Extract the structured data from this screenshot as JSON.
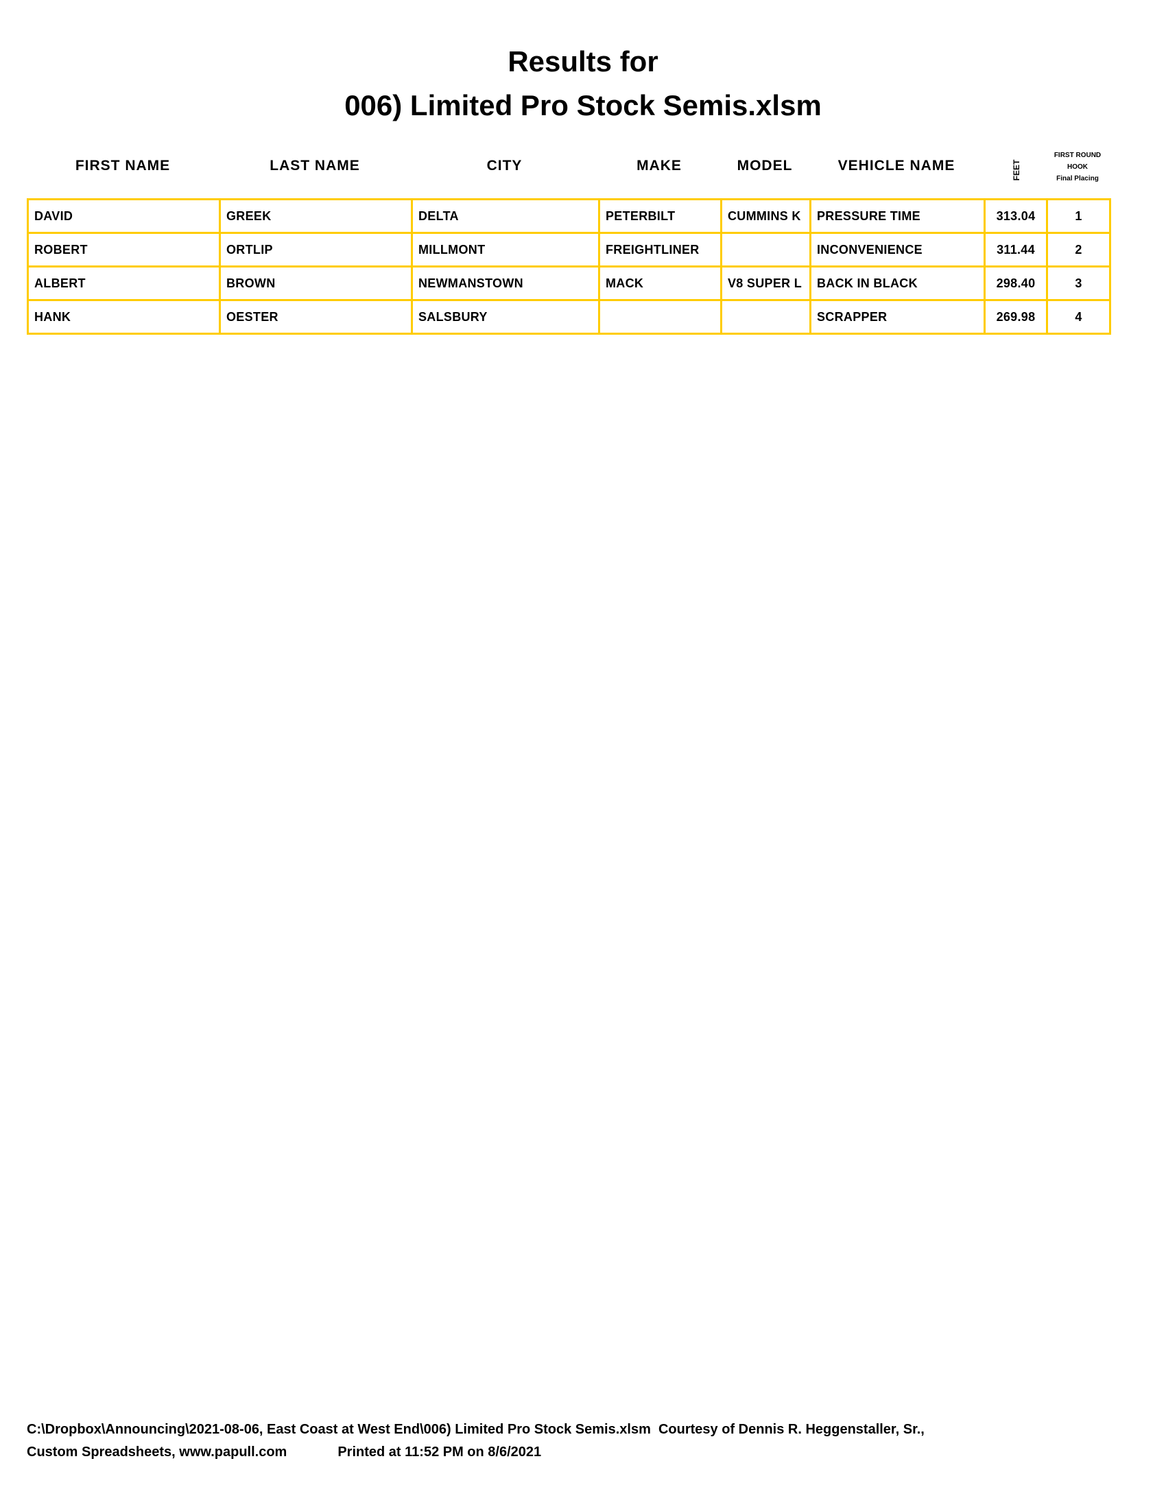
{
  "title_line1": "Results for",
  "title_line2": "006) Limited Pro Stock Semis.xlsm",
  "headers": {
    "first_name": "FIRST NAME",
    "last_name": "LAST NAME",
    "city": "CITY",
    "make": "MAKE",
    "model": "MODEL",
    "vehicle_name": "VEHICLE NAME",
    "feet": "FEET",
    "hook_line1": "FIRST ROUND",
    "hook_line2": "HOOK",
    "hook_line3": "Final Placing"
  },
  "rows": [
    {
      "first": "DAVID",
      "last": "GREEK",
      "city": "DELTA",
      "make": "PETERBILT",
      "model": "CUMMINS K",
      "vehicle": "PRESSURE TIME",
      "feet": "313.04",
      "place": "1"
    },
    {
      "first": "ROBERT",
      "last": "ORTLIP",
      "city": "MILLMONT",
      "make": "FREIGHTLINER",
      "model": "",
      "vehicle": "INCONVENIENCE",
      "feet": "311.44",
      "place": "2"
    },
    {
      "first": "ALBERT",
      "last": "BROWN",
      "city": "NEWMANSTOWN",
      "make": "MACK",
      "model": "V8 SUPER L",
      "vehicle": "BACK IN BLACK",
      "feet": "298.40",
      "place": "3"
    },
    {
      "first": "HANK",
      "last": "OESTER",
      "city": "SALSBURY",
      "make": "",
      "model": "",
      "vehicle": "SCRAPPER",
      "feet": "269.98",
      "place": "4"
    }
  ],
  "footer": {
    "line1": "C:\\Dropbox\\Announcing\\2021-08-06, East Coast at West End\\006) Limited Pro Stock Semis.xlsm  Courtesy of Dennis R. Heggenstaller, Sr.,",
    "line2a": "Custom Spreadsheets, www.papull.com",
    "line2b": "Printed at 11:52 PM on 8/6/2021"
  },
  "colors": {
    "grid": "#FFCC00"
  }
}
